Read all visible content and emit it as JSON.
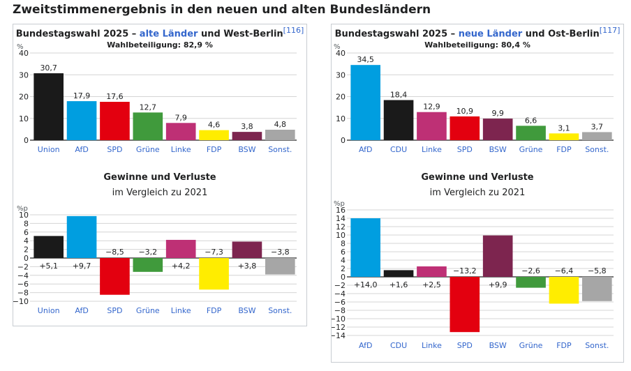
{
  "heading": "Zweitstimmenergebnis in den neuen und alten Bundesländern",
  "panels": [
    {
      "title_pre": "Bundestagswahl 2025 – ",
      "title_hl": "alte Länder",
      "title_post": " und West-Berlin",
      "ref": "[116]",
      "turnout": "Wahlbeteiligung: 82,9 %",
      "gl_title": "Gewinne und Verluste",
      "gl_subtitle": "im Vergleich zu 2021"
    },
    {
      "title_pre": "Bundestagswahl 2025 – ",
      "title_hl": "neue Länder",
      "title_post": " und Ost-Berlin",
      "ref": "[117]",
      "turnout": "Wahlbeteiligung: 80,4 %",
      "gl_title": "Gewinne und Verluste",
      "gl_subtitle": "im Vergleich zu 2021"
    }
  ],
  "chart_data": [
    {
      "type": "bar",
      "title": "",
      "categories": [
        "Union",
        "AfD",
        "SPD",
        "Grüne",
        "Linke",
        "FDP",
        "BSW",
        "Sonst."
      ],
      "values": [
        30.7,
        17.9,
        17.6,
        12.7,
        7.9,
        4.6,
        3.8,
        4.8
      ],
      "labels": [
        "30,7",
        "17,9",
        "17,6",
        "12,7",
        "7,9",
        "4,6",
        "3,8",
        "4,8"
      ],
      "colors": [
        "#1a1a1a",
        "#009ee0",
        "#e3000f",
        "#409a3c",
        "#be3075",
        "#ffed00",
        "#7d254f",
        "#a6a6a6"
      ],
      "ylabel": "%",
      "ylim": [
        0,
        40
      ],
      "yticks": [
        0,
        10,
        20,
        30,
        40
      ],
      "ytick_labels": [
        "0",
        "10",
        "20",
        "30",
        "40"
      ],
      "grid": true
    },
    {
      "type": "bar",
      "title": "",
      "categories": [
        "Union",
        "AfD",
        "SPD",
        "Grüne",
        "Linke",
        "FDP",
        "BSW",
        "Sonst."
      ],
      "values": [
        5.1,
        9.7,
        -8.5,
        -3.2,
        4.2,
        -7.3,
        3.8,
        -3.8
      ],
      "labels": [
        "+5,1",
        "+9,7",
        "−8,5",
        "−3,2",
        "+4,2",
        "−7,3",
        "+3,8",
        "−3,8"
      ],
      "colors": [
        "#1a1a1a",
        "#009ee0",
        "#e3000f",
        "#409a3c",
        "#be3075",
        "#ffed00",
        "#7d254f",
        "#a6a6a6"
      ],
      "ylabel": "%p",
      "ylim": [
        -10,
        10
      ],
      "yticks": [
        -10,
        -8,
        -6,
        -4,
        -2,
        0,
        2,
        4,
        6,
        8,
        10
      ],
      "ytick_labels": [
        "−10",
        "−8",
        "−6",
        "−4",
        "−2",
        "0",
        "2",
        "4",
        "6",
        "8",
        "10"
      ],
      "grid": true
    },
    {
      "type": "bar",
      "title": "",
      "categories": [
        "AfD",
        "CDU",
        "Linke",
        "SPD",
        "BSW",
        "Grüne",
        "FDP",
        "Sonst."
      ],
      "values": [
        34.5,
        18.4,
        12.9,
        10.9,
        9.9,
        6.6,
        3.1,
        3.7
      ],
      "labels": [
        "34,5",
        "18,4",
        "12,9",
        "10,9",
        "9,9",
        "6,6",
        "3,1",
        "3,7"
      ],
      "colors": [
        "#009ee0",
        "#1a1a1a",
        "#be3075",
        "#e3000f",
        "#7d254f",
        "#409a3c",
        "#ffed00",
        "#a6a6a6"
      ],
      "ylabel": "%",
      "ylim": [
        0,
        40
      ],
      "yticks": [
        0,
        10,
        20,
        30,
        40
      ],
      "ytick_labels": [
        "0",
        "10",
        "20",
        "30",
        "40"
      ],
      "grid": true
    },
    {
      "type": "bar",
      "title": "",
      "categories": [
        "AfD",
        "CDU",
        "Linke",
        "SPD",
        "BSW",
        "Grüne",
        "FDP",
        "Sonst."
      ],
      "values": [
        14.0,
        1.6,
        2.5,
        -13.2,
        9.9,
        -2.6,
        -6.4,
        -5.8
      ],
      "labels": [
        "+14,0",
        "+1,6",
        "+2,5",
        "−13,2",
        "+9,9",
        "−2,6",
        "−6,4",
        "−5,8"
      ],
      "colors": [
        "#009ee0",
        "#1a1a1a",
        "#be3075",
        "#e3000f",
        "#7d254f",
        "#409a3c",
        "#ffed00",
        "#a6a6a6"
      ],
      "ylabel": "%p",
      "ylim": [
        -14,
        16
      ],
      "yticks": [
        -14,
        -12,
        -10,
        -8,
        -6,
        -4,
        -2,
        0,
        2,
        4,
        6,
        8,
        10,
        12,
        14,
        16
      ],
      "ytick_labels": [
        "−14",
        "−12",
        "−10",
        "−8",
        "−6",
        "−4",
        "−2",
        "0",
        "2",
        "4",
        "6",
        "8",
        "10",
        "12",
        "14",
        "16"
      ],
      "grid": true
    }
  ]
}
